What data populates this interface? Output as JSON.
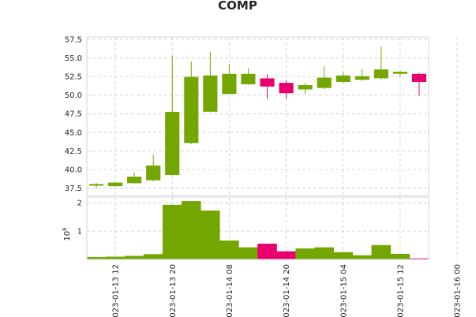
{
  "chart_data": {
    "type": "candlestick",
    "title": "COMP",
    "x_tick_labels": [
      "023-01-13 12",
      "023-01-13 20",
      "023-01-14 08",
      "023-01-14 20",
      "023-01-15 04",
      "023-01-15 12",
      "023-01-16 00"
    ],
    "y_price": {
      "ylim": [
        36.5,
        57.8
      ],
      "ticks": [
        "37.5",
        "40.0",
        "42.5",
        "45.0",
        "47.5",
        "50.0",
        "52.5",
        "55.0",
        "57.5"
      ]
    },
    "y_volume": {
      "ylim": [
        0,
        2.2
      ],
      "ticks": [
        "1",
        "2"
      ],
      "scale_label": "10",
      "scale_exponent": "6"
    },
    "colors": {
      "up": "#73a600",
      "down": "#e8006e",
      "grid": "#cccccc",
      "frame": "#dddddd"
    },
    "candles": [
      {
        "open": 37.9,
        "high": 38.2,
        "low": 37.5,
        "close": 38.0,
        "volume": 0.08
      },
      {
        "open": 37.8,
        "high": 38.3,
        "low": 37.7,
        "close": 38.2,
        "volume": 0.09
      },
      {
        "open": 38.2,
        "high": 39.6,
        "low": 38.1,
        "close": 39.0,
        "volume": 0.12
      },
      {
        "open": 38.6,
        "high": 42.0,
        "low": 38.4,
        "close": 40.5,
        "volume": 0.18
      },
      {
        "open": 39.3,
        "high": 55.3,
        "low": 39.2,
        "close": 47.7,
        "volume": 1.92
      },
      {
        "open": 43.6,
        "high": 54.5,
        "low": 43.4,
        "close": 52.4,
        "volume": 2.05
      },
      {
        "open": 47.8,
        "high": 55.8,
        "low": 47.7,
        "close": 52.6,
        "volume": 1.72
      },
      {
        "open": 50.2,
        "high": 54.2,
        "low": 50.1,
        "close": 52.8,
        "volume": 0.66
      },
      {
        "open": 51.5,
        "high": 53.6,
        "low": 51.4,
        "close": 52.8,
        "volume": 0.42
      },
      {
        "open": 52.2,
        "high": 52.8,
        "low": 49.5,
        "close": 51.2,
        "volume": 0.55
      },
      {
        "open": 51.6,
        "high": 52.0,
        "low": 49.5,
        "close": 50.3,
        "volume": 0.28
      },
      {
        "open": 50.8,
        "high": 51.6,
        "low": 50.2,
        "close": 51.3,
        "volume": 0.38
      },
      {
        "open": 51.0,
        "high": 53.9,
        "low": 50.8,
        "close": 52.3,
        "volume": 0.42
      },
      {
        "open": 51.8,
        "high": 53.1,
        "low": 51.7,
        "close": 52.6,
        "volume": 0.25
      },
      {
        "open": 52.1,
        "high": 53.5,
        "low": 51.9,
        "close": 52.5,
        "volume": 0.14
      },
      {
        "open": 52.3,
        "high": 56.5,
        "low": 52.1,
        "close": 53.4,
        "volume": 0.5
      },
      {
        "open": 52.9,
        "high": 53.3,
        "low": 52.5,
        "close": 53.1,
        "volume": 0.19
      },
      {
        "open": 52.8,
        "high": 53.0,
        "low": 49.9,
        "close": 51.8,
        "volume": 0.03
      }
    ]
  }
}
